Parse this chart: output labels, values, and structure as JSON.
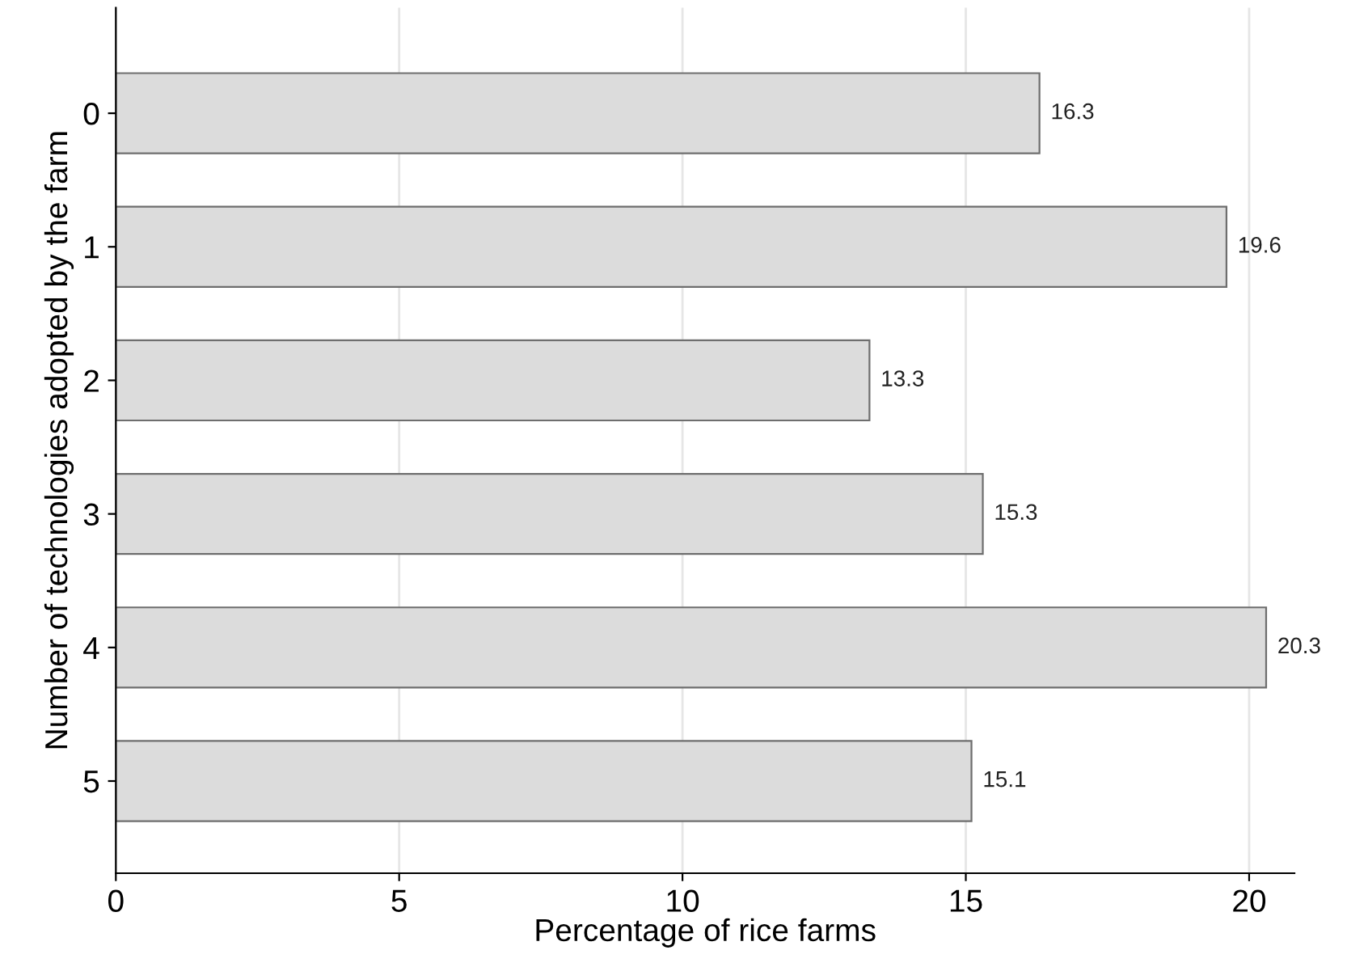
{
  "chart_data": {
    "type": "bar",
    "orientation": "horizontal",
    "xlabel": "Percentage of rice farms",
    "ylabel": "Number of technologies adopted by the farm",
    "categories": [
      "0",
      "1",
      "2",
      "3",
      "4",
      "5"
    ],
    "values": [
      16.3,
      19.6,
      13.3,
      15.3,
      20.3,
      15.1
    ],
    "color": "#dcdcdc",
    "data_labels": true,
    "xlim": [
      0,
      20.8
    ],
    "xticks": [
      0,
      5,
      10,
      15,
      20
    ],
    "grid": "x",
    "legend": false
  }
}
